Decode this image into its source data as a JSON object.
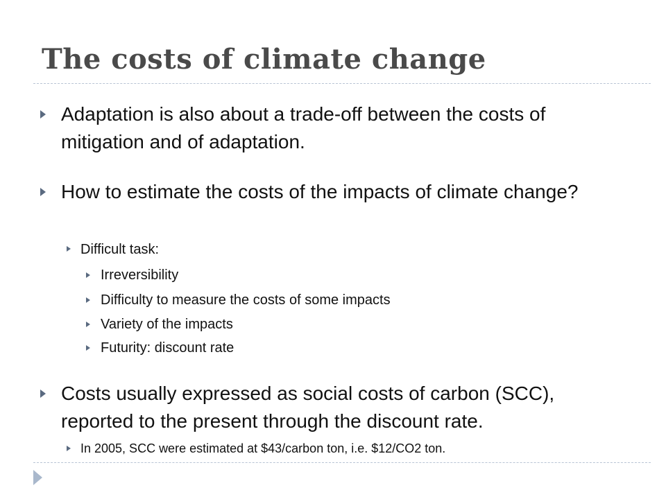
{
  "slide": {
    "title": "The costs of climate change",
    "bullets": [
      {
        "text": "Adaptation is also about a trade-off between the costs of mitigation and of adaptation."
      },
      {
        "text": "How to estimate the costs of the impacts of climate change?",
        "sub": [
          {
            "text": "Difficult task:",
            "sub": [
              "Irreversibility",
              "Difficulty to measure the costs of some impacts",
              "Variety of the impacts",
              "Futurity: discount rate"
            ]
          }
        ]
      },
      {
        "text": "Costs usually expressed as social costs of carbon (SCC), reported to the present through the discount rate.",
        "sub": [
          {
            "text": "In 2005, SCC were estimated at $43/carbon ton, i.e. $12/CO2 ton."
          }
        ]
      }
    ]
  },
  "colors": {
    "title": "#4a4a4a",
    "rule": "#b8c4d4",
    "bullet": "#5a6a80",
    "corner_mark": "#a9b8cc"
  },
  "icons": {
    "bullet": "triangle-right-icon",
    "corner": "triangle-right-icon"
  }
}
